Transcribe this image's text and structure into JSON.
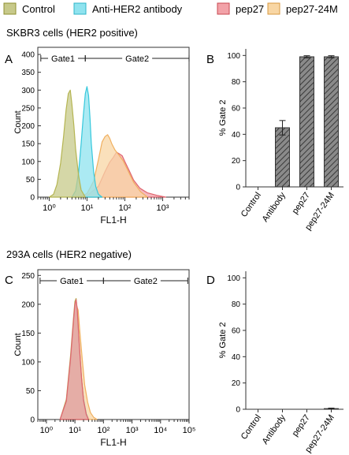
{
  "legend": [
    {
      "label": "Control",
      "color": "#b5b552",
      "fill": "#c7c98a"
    },
    {
      "label": "Anti-HER2 antibody",
      "color": "#36c8dc",
      "fill": "#8fe3ef"
    },
    {
      "label": "pep27",
      "color": "#e0646e",
      "fill": "#f2a2a8"
    },
    {
      "label": "pep27-24M",
      "color": "#f0b060",
      "fill": "#f8d6a4"
    }
  ],
  "panels": {
    "A": {
      "letter": "A",
      "subtitle": "SKBR3 cells (HER2 positive)"
    },
    "B": {
      "letter": "B"
    },
    "C": {
      "letter": "C",
      "subtitle": "293A cells (HER2 negative)"
    },
    "D": {
      "letter": "D"
    }
  },
  "chart_data": [
    {
      "id": "A",
      "type": "area",
      "xlabel": "FL1-H",
      "ylabel": "Count",
      "xscale": "log",
      "xlim": [
        0.5,
        5000
      ],
      "ylim": [
        0,
        420
      ],
      "x_ticks": [
        "10⁰",
        "10¹",
        "10²",
        "10³"
      ],
      "x_tick_values": [
        1,
        10,
        100,
        1000
      ],
      "y_ticks": [
        0,
        50,
        100,
        150,
        200,
        250,
        300,
        350,
        400
      ],
      "gates": [
        {
          "label": "Gate1",
          "from": 0.6,
          "to": 9
        },
        {
          "label": "Gate2",
          "from": 9,
          "to": 5000
        }
      ],
      "series": [
        {
          "name": "pep27",
          "x": [
            4,
            10,
            20,
            30,
            40,
            50,
            60,
            70,
            85,
            100,
            130,
            170,
            250,
            400,
            700,
            1200
          ],
          "y": [
            0,
            4,
            30,
            72,
            98,
            112,
            126,
            122,
            116,
            100,
            75,
            48,
            25,
            12,
            5,
            0
          ]
        },
        {
          "name": "pep27-24M",
          "x": [
            6,
            10,
            15,
            20,
            25,
            30,
            35,
            40,
            45,
            55,
            70,
            90,
            120,
            170,
            260,
            400
          ],
          "y": [
            0,
            10,
            45,
            105,
            155,
            170,
            175,
            165,
            150,
            132,
            118,
            102,
            75,
            42,
            15,
            0
          ]
        },
        {
          "name": "Anti-HER2 antibody",
          "x": [
            4,
            5,
            6,
            7,
            8,
            9,
            10,
            11,
            12,
            13,
            15,
            17,
            20,
            25
          ],
          "y": [
            0,
            18,
            70,
            150,
            230,
            290,
            310,
            285,
            220,
            150,
            70,
            30,
            8,
            0
          ]
        },
        {
          "name": "Control",
          "x": [
            1,
            1.3,
            1.6,
            2,
            2.4,
            2.8,
            3.2,
            3.6,
            4,
            4.5,
            5,
            6,
            7,
            9
          ],
          "y": [
            0,
            8,
            35,
            95,
            170,
            245,
            290,
            300,
            260,
            200,
            135,
            60,
            20,
            0
          ]
        }
      ]
    },
    {
      "id": "B",
      "type": "bar",
      "ylabel": "% Gate 2",
      "ylim": [
        0,
        105
      ],
      "y_ticks": [
        0,
        20,
        40,
        60,
        80,
        100
      ],
      "categories": [
        "Control",
        "Antibody",
        "pep27",
        "pep27-24M"
      ],
      "values": [
        0,
        45,
        99,
        99
      ],
      "errors": [
        0,
        5.5,
        0.8,
        0.8
      ]
    },
    {
      "id": "C",
      "type": "area",
      "xlabel": "FL1-H",
      "ylabel": "Count",
      "xscale": "log",
      "xlim": [
        0.5,
        100000
      ],
      "ylim": [
        0,
        260
      ],
      "x_ticks": [
        "10⁰",
        "10¹",
        "10²",
        "10³",
        "10⁴",
        "10⁵"
      ],
      "x_tick_values": [
        1,
        10,
        100,
        1000,
        10000,
        100000
      ],
      "y_ticks": [
        0,
        50,
        100,
        150,
        200,
        250
      ],
      "gates": [
        {
          "label": "Gate1",
          "from": 0.6,
          "to": 100
        },
        {
          "label": "Gate2",
          "from": 100,
          "to": 90000
        }
      ],
      "series": [
        {
          "name": "pep27-24M",
          "x": [
            3,
            5,
            7,
            9,
            11,
            13,
            15,
            18,
            22,
            28,
            35,
            45,
            60
          ],
          "y": [
            0,
            25,
            85,
            160,
            200,
            190,
            150,
            105,
            60,
            30,
            12,
            4,
            0
          ]
        },
        {
          "name": "Anti-HER2 antibody",
          "x": [
            3,
            5,
            7,
            9,
            10,
            11,
            12,
            14,
            17,
            20,
            25,
            30
          ],
          "y": [
            0,
            30,
            100,
            170,
            195,
            200,
            185,
            130,
            70,
            35,
            10,
            0
          ]
        },
        {
          "name": "Control",
          "x": [
            3,
            5,
            7,
            9,
            10,
            11,
            12,
            14,
            17,
            20,
            25,
            30
          ],
          "y": [
            0,
            35,
            110,
            180,
            205,
            210,
            190,
            135,
            70,
            32,
            8,
            0
          ]
        },
        {
          "name": "pep27",
          "x": [
            3,
            5,
            7,
            9,
            10,
            11,
            12,
            14,
            17,
            20,
            25,
            30
          ],
          "y": [
            0,
            32,
            105,
            175,
            200,
            208,
            192,
            135,
            72,
            34,
            9,
            0
          ]
        }
      ]
    },
    {
      "id": "D",
      "type": "bar",
      "ylabel": "% Gate 2",
      "ylim": [
        0,
        105
      ],
      "y_ticks": [
        0,
        20,
        40,
        60,
        80,
        100
      ],
      "categories": [
        "Control",
        "Antibody",
        "pep27",
        "pep27-24M"
      ],
      "values": [
        0,
        0,
        0,
        0.5
      ],
      "errors": [
        0,
        0,
        0,
        0.4
      ]
    }
  ]
}
